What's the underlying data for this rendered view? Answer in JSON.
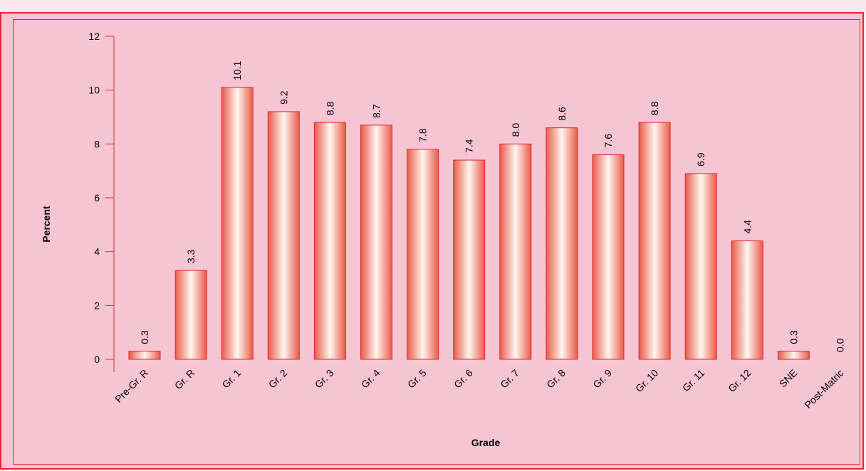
{
  "colors": {
    "border": "#e4262e",
    "background": "#f5c5d4",
    "bar_edge": "#e4262e",
    "bar_dark": "#e95a4a",
    "bar_light": "#fff7f0"
  },
  "chart_data": {
    "type": "bar",
    "title": "",
    "xlabel": "Grade",
    "ylabel": "Percent",
    "ylim": [
      0,
      12
    ],
    "yticks": [
      "0",
      "2",
      "4",
      "6",
      "8",
      "10",
      "12"
    ],
    "grid": false,
    "categories": [
      "Pre-Gr. R",
      "Gr. R",
      "Gr. 1",
      "Gr. 2",
      "Gr. 3",
      "Gr. 4",
      "Gr. 5",
      "Gr. 6",
      "Gr. 7",
      "Gr. 8",
      "Gr. 9",
      "Gr. 10",
      "Gr. 11",
      "Gr. 12",
      "SNE",
      "Post-Matric"
    ],
    "values": [
      0.3,
      3.3,
      10.1,
      9.2,
      8.8,
      8.7,
      7.8,
      7.4,
      8.0,
      8.6,
      7.6,
      8.8,
      6.9,
      4.4,
      0.3,
      0.0
    ],
    "value_labels": [
      "0.3",
      "3.3",
      "10.1",
      "9.2",
      "8.8",
      "8.7",
      "7.8",
      "7.4",
      "8.0",
      "8.6",
      "7.6",
      "8.8",
      "6.9",
      "4.4",
      "0.3",
      "0.0"
    ]
  }
}
